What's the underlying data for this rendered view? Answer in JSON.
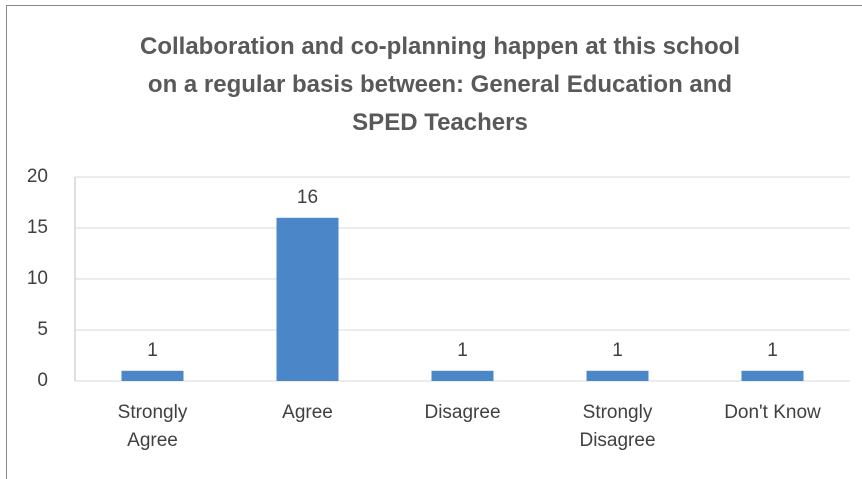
{
  "chart_data": {
    "type": "bar",
    "title": "Collaboration and co-planning happen at this school on a regular basis between: General Education and SPED Teachers",
    "categories": [
      "Strongly Agree",
      "Agree",
      "Disagree",
      "Strongly Disagree",
      "Don't Know"
    ],
    "values": [
      1,
      16,
      1,
      1,
      1
    ],
    "color": "#4a86c8",
    "ylim": [
      0,
      20
    ],
    "yticks": [
      0,
      5,
      10,
      15,
      20
    ],
    "grid": true,
    "data_labels": true
  }
}
